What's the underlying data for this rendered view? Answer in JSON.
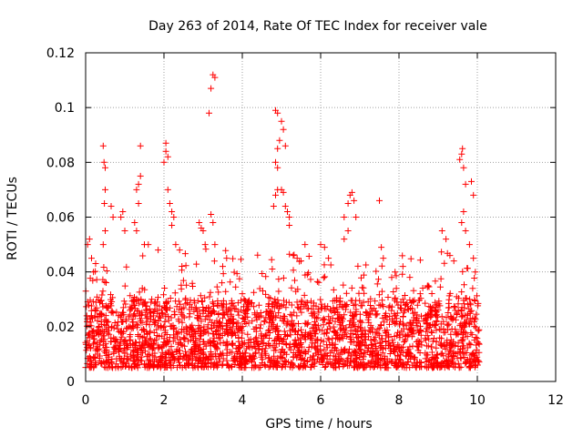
{
  "chart_data": {
    "type": "scatter",
    "title": "Day 263 of 2014, Rate Of TEC Index for receiver vale",
    "xlabel": "GPS time / hours",
    "ylabel": "ROTI / TECUs",
    "xlim": [
      0,
      12
    ],
    "ylim": [
      0,
      0.12
    ],
    "x_ticks": [
      0,
      2,
      4,
      6,
      8,
      10,
      12
    ],
    "y_ticks": [
      0,
      0.02,
      0.04,
      0.06,
      0.08,
      0.1,
      0.12
    ],
    "x_tick_labels": [
      "0",
      "2",
      "4",
      "6",
      "8",
      "10",
      "12"
    ],
    "y_tick_labels": [
      "0",
      "0.02",
      "0.04",
      "0.06",
      "0.08",
      "0.1",
      "0.12"
    ],
    "grid": true,
    "marker": "+",
    "series": [
      {
        "name": "ROTI",
        "color": "#ff0000",
        "x_range": [
          0.0,
          10.05
        ],
        "baseline_range": [
          0.005,
          0.03
        ],
        "points": [
          [
            0.05,
            0.05
          ],
          [
            0.1,
            0.052
          ],
          [
            0.15,
            0.045
          ],
          [
            0.2,
            0.04
          ],
          [
            0.45,
            0.086
          ],
          [
            0.47,
            0.08
          ],
          [
            0.5,
            0.078
          ],
          [
            0.5,
            0.07
          ],
          [
            0.48,
            0.065
          ],
          [
            0.5,
            0.055
          ],
          [
            0.45,
            0.05
          ],
          [
            0.65,
            0.064
          ],
          [
            0.7,
            0.06
          ],
          [
            0.9,
            0.06
          ],
          [
            0.95,
            0.062
          ],
          [
            1.0,
            0.055
          ],
          [
            1.3,
            0.07
          ],
          [
            1.35,
            0.072
          ],
          [
            1.4,
            0.075
          ],
          [
            1.4,
            0.086
          ],
          [
            1.35,
            0.065
          ],
          [
            1.25,
            0.058
          ],
          [
            1.3,
            0.055
          ],
          [
            1.5,
            0.05
          ],
          [
            1.6,
            0.05
          ],
          [
            1.85,
            0.048
          ],
          [
            2.0,
            0.08
          ],
          [
            2.05,
            0.087
          ],
          [
            2.05,
            0.084
          ],
          [
            2.1,
            0.082
          ],
          [
            2.1,
            0.07
          ],
          [
            2.15,
            0.065
          ],
          [
            2.2,
            0.062
          ],
          [
            2.25,
            0.06
          ],
          [
            2.2,
            0.057
          ],
          [
            2.3,
            0.05
          ],
          [
            2.4,
            0.048
          ],
          [
            2.9,
            0.058
          ],
          [
            2.95,
            0.056
          ],
          [
            3.0,
            0.055
          ],
          [
            3.05,
            0.05
          ],
          [
            3.15,
            0.098
          ],
          [
            3.2,
            0.107
          ],
          [
            3.25,
            0.112
          ],
          [
            3.3,
            0.111
          ],
          [
            3.2,
            0.061
          ],
          [
            3.25,
            0.058
          ],
          [
            3.3,
            0.05
          ],
          [
            3.5,
            0.042
          ],
          [
            3.6,
            0.045
          ],
          [
            4.85,
            0.099
          ],
          [
            4.9,
            0.098
          ],
          [
            5.0,
            0.095
          ],
          [
            5.05,
            0.092
          ],
          [
            4.95,
            0.088
          ],
          [
            4.9,
            0.085
          ],
          [
            5.1,
            0.086
          ],
          [
            4.85,
            0.08
          ],
          [
            4.9,
            0.078
          ],
          [
            4.9,
            0.07
          ],
          [
            4.85,
            0.068
          ],
          [
            5.0,
            0.07
          ],
          [
            5.05,
            0.069
          ],
          [
            5.1,
            0.064
          ],
          [
            5.15,
            0.062
          ],
          [
            5.2,
            0.06
          ],
          [
            5.2,
            0.057
          ],
          [
            4.8,
            0.064
          ],
          [
            5.3,
            0.046
          ],
          [
            5.4,
            0.045
          ],
          [
            5.5,
            0.044
          ],
          [
            5.6,
            0.05
          ],
          [
            6.0,
            0.05
          ],
          [
            6.1,
            0.049
          ],
          [
            6.2,
            0.045
          ],
          [
            6.6,
            0.06
          ],
          [
            6.7,
            0.065
          ],
          [
            6.75,
            0.068
          ],
          [
            6.8,
            0.069
          ],
          [
            6.85,
            0.066
          ],
          [
            6.9,
            0.06
          ],
          [
            6.7,
            0.055
          ],
          [
            6.6,
            0.052
          ],
          [
            7.5,
            0.066
          ],
          [
            7.55,
            0.049
          ],
          [
            7.6,
            0.045
          ],
          [
            7.9,
            0.04
          ],
          [
            8.1,
            0.042
          ],
          [
            9.1,
            0.055
          ],
          [
            9.2,
            0.052
          ],
          [
            9.3,
            0.046
          ],
          [
            9.4,
            0.044
          ],
          [
            9.55,
            0.081
          ],
          [
            9.6,
            0.083
          ],
          [
            9.62,
            0.085
          ],
          [
            9.65,
            0.078
          ],
          [
            9.7,
            0.072
          ],
          [
            9.65,
            0.062
          ],
          [
            9.6,
            0.058
          ],
          [
            9.7,
            0.055
          ],
          [
            9.85,
            0.073
          ],
          [
            9.9,
            0.068
          ],
          [
            9.8,
            0.05
          ],
          [
            9.9,
            0.045
          ],
          [
            9.95,
            0.04
          ]
        ]
      }
    ]
  }
}
